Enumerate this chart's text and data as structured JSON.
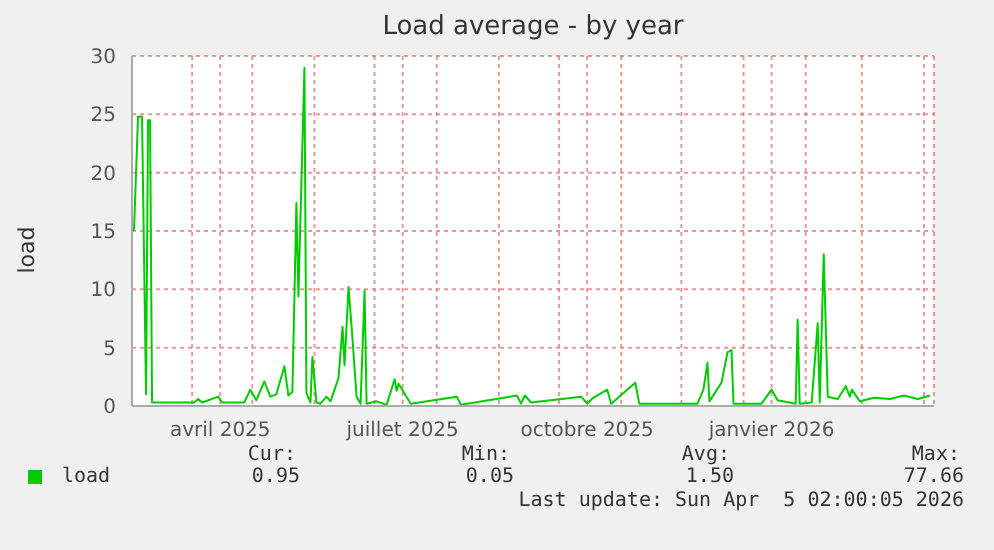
{
  "chart_data": {
    "type": "line",
    "title": "Load average - by year",
    "ylabel": "load",
    "x": [
      "2025-03-03",
      "2025-03-05",
      "2025-03-07",
      "2025-03-09",
      "2025-03-10",
      "2025-03-11",
      "2025-03-12",
      "2025-04-02",
      "2025-04-04",
      "2025-04-06",
      "2025-04-14",
      "2025-04-16",
      "2025-04-27",
      "2025-04-30",
      "2025-05-03",
      "2025-05-07",
      "2025-05-10",
      "2025-05-13",
      "2025-05-17",
      "2025-05-19",
      "2025-05-21",
      "2025-05-23",
      "2025-05-24",
      "2025-05-27",
      "2025-05-28",
      "2025-05-30",
      "2025-05-31",
      "2025-06-02",
      "2025-06-04",
      "2025-06-07",
      "2025-06-09",
      "2025-06-13",
      "2025-06-15",
      "2025-06-16",
      "2025-06-18",
      "2025-06-20",
      "2025-06-22",
      "2025-06-24",
      "2025-06-26",
      "2025-06-27",
      "2025-07-02",
      "2025-07-07",
      "2025-07-11",
      "2025-07-12",
      "2025-07-13",
      "2025-07-19",
      "2025-08-11",
      "2025-08-13",
      "2025-09-10",
      "2025-09-12",
      "2025-09-14",
      "2025-09-17",
      "2025-10-12",
      "2025-10-15",
      "2025-10-18",
      "2025-10-25",
      "2025-10-27",
      "2025-11-08",
      "2025-11-10",
      "2025-12-09",
      "2025-12-12",
      "2025-12-14",
      "2025-12-15",
      "2025-12-21",
      "2025-12-24",
      "2025-12-26",
      "2025-12-27",
      "2026-01-10",
      "2026-01-15",
      "2026-01-18",
      "2026-01-27",
      "2026-01-28",
      "2026-01-29",
      "2026-02-04",
      "2026-02-07",
      "2026-02-08",
      "2026-02-10",
      "2026-02-12",
      "2026-02-17",
      "2026-02-21",
      "2026-02-23",
      "2026-02-24",
      "2026-02-28",
      "2026-03-07",
      "2026-03-15",
      "2026-03-22",
      "2026-03-29",
      "2026-04-04"
    ],
    "series": [
      {
        "name": "load",
        "color": "#00cc00",
        "values": [
          15,
          24.8,
          24.8,
          1,
          24.5,
          24.5,
          0.3,
          0.3,
          0.6,
          0.3,
          0.8,
          0.3,
          0.3,
          1.4,
          0.5,
          2.1,
          0.8,
          1.0,
          3.4,
          0.9,
          1.2,
          17.4,
          9.4,
          29.0,
          1.1,
          0.3,
          4.2,
          0.3,
          0.2,
          0.8,
          0.4,
          2.4,
          6.8,
          3.5,
          10.2,
          5.7,
          0.8,
          0.2,
          9.9,
          0.2,
          0.4,
          0.1,
          2.3,
          1.3,
          1.9,
          0.2,
          0.8,
          0.1,
          0.9,
          0.2,
          0.9,
          0.3,
          0.8,
          0.2,
          0.7,
          1.4,
          0.2,
          2.0,
          0.2,
          0.2,
          1.4,
          3.7,
          0.4,
          2.0,
          4.6,
          4.8,
          0.2,
          0.2,
          1.4,
          0.5,
          0.2,
          7.4,
          0.2,
          0.3,
          7.1,
          0.3,
          13.0,
          0.8,
          0.6,
          1.7,
          0.8,
          1.4,
          0.4,
          0.7,
          0.6,
          0.9,
          0.6,
          0.9
        ]
      }
    ],
    "xlim": [
      "2025-03-02",
      "2026-04-06"
    ],
    "xticks": [
      {
        "value": "2025-04-01",
        "label": null
      },
      {
        "value": "2025-04-15",
        "label": "avril 2025"
      },
      {
        "value": "2025-05-01",
        "label": null
      },
      {
        "value": "2025-06-01",
        "label": null
      },
      {
        "value": "2025-07-01",
        "label": null
      },
      {
        "value": "2025-07-15",
        "label": "juillet 2025"
      },
      {
        "value": "2025-08-01",
        "label": null
      },
      {
        "value": "2025-09-01",
        "label": null
      },
      {
        "value": "2025-10-01",
        "label": null
      },
      {
        "value": "2025-10-15",
        "label": "octobre 2025"
      },
      {
        "value": "2025-11-01",
        "label": null
      },
      {
        "value": "2025-12-01",
        "label": null
      },
      {
        "value": "2026-01-01",
        "label": null
      },
      {
        "value": "2026-01-15",
        "label": "janvier 2026"
      },
      {
        "value": "2026-02-01",
        "label": null
      },
      {
        "value": "2026-03-01",
        "label": null
      },
      {
        "value": "2026-04-01",
        "label": null
      }
    ],
    "ylim": [
      0,
      30
    ],
    "yticks": [
      0,
      5,
      10,
      15,
      20,
      25,
      30
    ],
    "grid": true,
    "legend": "bottom",
    "marker": "none",
    "line_style": "solid",
    "annotations": [
      "Cur:",
      "Min:",
      "Avg:",
      "Max:",
      "0.95",
      "0.05",
      "1.50",
      "77.66",
      "Last update: Sun Apr  5 02:00:05 2026"
    ]
  }
}
